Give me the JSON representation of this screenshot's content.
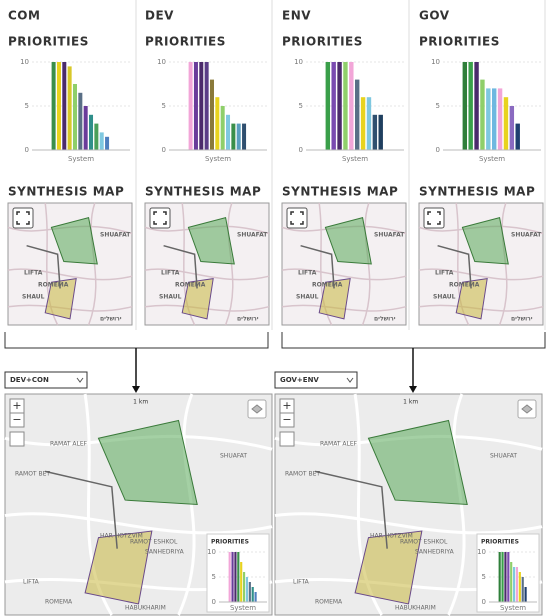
{
  "panels": [
    {
      "title": "COM",
      "priorities": "PRIORITIES",
      "map_title": "SYNTHESIS MAP",
      "places": [
        "SHUAFAT",
        "LIFTA",
        "ROMEMA",
        "SHAUL",
        "ירושלים"
      ],
      "chart": {
        "type": "bar",
        "ylim": [
          0,
          10
        ],
        "yticks": [
          0,
          5,
          10
        ],
        "xlabel": "System",
        "values": [
          10,
          10,
          10,
          9.5,
          7.5,
          6.5,
          5,
          4,
          3,
          2,
          1.5
        ],
        "colors": [
          "#3a8f4a",
          "#e8d31e",
          "#4b2a6b",
          "#d8c82a",
          "#8fcf6a",
          "#5a6f86",
          "#6a3c9a",
          "#2f8f8a",
          "#4a9f5a",
          "#7fc8e0",
          "#4f7fbf"
        ]
      }
    },
    {
      "title": "DEV",
      "priorities": "PRIORITIES",
      "map_title": "SYNTHESIS MAP",
      "places": [
        "SHUAFAT",
        "LIFTA",
        "ROMEMA",
        "SHAUL",
        "ירושלים"
      ],
      "chart": {
        "type": "bar",
        "ylim": [
          0,
          10
        ],
        "yticks": [
          0,
          5,
          10
        ],
        "xlabel": "System",
        "values": [
          10,
          10,
          10,
          10,
          8,
          6,
          5,
          4,
          3,
          3,
          3
        ],
        "colors": [
          "#f2a6d8",
          "#6a3c9a",
          "#4b2a6b",
          "#5a3c86",
          "#8a7a3a",
          "#e8d31e",
          "#8fcf6a",
          "#7fc8e0",
          "#3a8f4a",
          "#5a9fbf",
          "#2f4f6f"
        ]
      }
    },
    {
      "title": "ENV",
      "priorities": "PRIORITIES",
      "map_title": "SYNTHESIS MAP",
      "places": [
        "SHUAFAT",
        "LIFTA",
        "ROMEMA",
        "SHAUL",
        "ירושלים"
      ],
      "chart": {
        "type": "bar",
        "ylim": [
          0,
          10
        ],
        "yticks": [
          0,
          5,
          10
        ],
        "xlabel": "System",
        "values": [
          10,
          10,
          10,
          10,
          10,
          8,
          6,
          6,
          4,
          4
        ],
        "colors": [
          "#3a9f4a",
          "#7a4ab0",
          "#4b2a6b",
          "#8fcf6a",
          "#f2a6d8",
          "#5a6f86",
          "#e8d31e",
          "#7fc8e0",
          "#2f4f6f",
          "#1f3f5f"
        ]
      }
    },
    {
      "title": "GOV",
      "priorities": "PRIORITIES",
      "map_title": "SYNTHESIS MAP",
      "places": [
        "SHUAFAT",
        "LIFTA",
        "ROMEMA",
        "SHAUL",
        "ירושלים"
      ],
      "chart": {
        "type": "bar",
        "ylim": [
          0,
          10
        ],
        "yticks": [
          0,
          5,
          10
        ],
        "xlabel": "System",
        "values": [
          10,
          10,
          10,
          8,
          7,
          7,
          7,
          6,
          5,
          3
        ],
        "colors": [
          "#2f7f3a",
          "#3a9f4a",
          "#4b2a6b",
          "#8fcf6a",
          "#7fc8e0",
          "#6fb8e0",
          "#f2a6d8",
          "#e8d31e",
          "#8a6ac0",
          "#1f3f6f"
        ]
      }
    }
  ],
  "combined": [
    {
      "selector": "DEV+CON",
      "zoom_in": "+",
      "zoom_out": "−",
      "scale": "1 km",
      "places": [
        "RAMAT ALEF",
        "RAMOT BET",
        "SHUAFAT",
        "HAR HOTZVIM",
        "RAMOT ESHKOL",
        "SANHEDRIYA",
        "LIFTA",
        "ROMEMA",
        "HABUKHARIM"
      ],
      "inset": {
        "title": "PRIORITIES",
        "chart": {
          "type": "bar",
          "ylim": [
            0,
            10
          ],
          "yticks": [
            0,
            5,
            10
          ],
          "xlabel": "System",
          "values": [
            10,
            10,
            10,
            10,
            8,
            6,
            5,
            4,
            3,
            2
          ],
          "colors": [
            "#f2a6d8",
            "#6a3c9a",
            "#4b2a6b",
            "#3a8f4a",
            "#e8d31e",
            "#8fcf6a",
            "#7fc8e0",
            "#5a6f86",
            "#2f8f8a",
            "#4f7fbf"
          ]
        }
      }
    },
    {
      "selector": "GOV+ENV",
      "zoom_in": "+",
      "zoom_out": "−",
      "scale": "1 km",
      "places": [
        "RAMAT ALEF",
        "RAMOT BET",
        "SHUAFAT",
        "HAR HOTZVIM",
        "RAMOT ESHKOL",
        "SANHEDRIYA",
        "LIFTA",
        "ROMEMA",
        "HABUKHARIM"
      ],
      "inset": {
        "title": "PRIORITIES",
        "chart": {
          "type": "bar",
          "ylim": [
            0,
            10
          ],
          "yticks": [
            0,
            5,
            10
          ],
          "xlabel": "System",
          "values": [
            10,
            10,
            10,
            10,
            8,
            7,
            7,
            6,
            5,
            3
          ],
          "colors": [
            "#2f7f3a",
            "#3a9f4a",
            "#4b2a6b",
            "#7a4ab0",
            "#8fcf6a",
            "#7fc8e0",
            "#f2a6d8",
            "#e8d31e",
            "#5a6f86",
            "#1f3f6f"
          ]
        }
      }
    }
  ]
}
